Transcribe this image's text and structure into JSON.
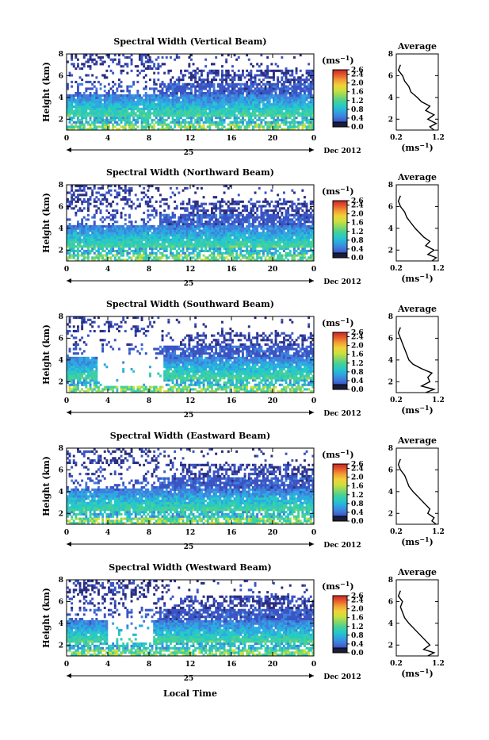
{
  "figure": {
    "x_axis_label": "Local Time",
    "date_label": "Dec 2012",
    "day_label": "25",
    "colorbar_unit": "(ms",
    "colorbar_unit_exp": "−1",
    "avg_title": "Average",
    "avg_xlabel": "(ms",
    "avg_xlabel_exp": "−1"
  },
  "colors": {
    "scale": [
      "#2b2e7e",
      "#3b54c4",
      "#3f7fdc",
      "#2ca8e2",
      "#27c9c6",
      "#45d098",
      "#8fd860",
      "#cfe03c",
      "#f1d13a",
      "#f29e33",
      "#e7592d",
      "#c92424"
    ]
  },
  "chart_data": [
    {
      "type": "heatmap",
      "title": "Spectral Width (Vertical Beam)",
      "ylabel": "Height (km)",
      "xlim": [
        0,
        24
      ],
      "ylim": [
        1,
        8
      ],
      "xticks": [
        "0",
        "4",
        "8",
        "12",
        "16",
        "20",
        "0"
      ],
      "yticks": [
        "2",
        "4",
        "6",
        "8"
      ],
      "colorbar": {
        "range": [
          0.0,
          2.6
        ],
        "ticks": [
          "0.0",
          "0.4",
          "0.8",
          "1.2",
          "1.6",
          "2.0",
          "2.4",
          "2.6"
        ]
      },
      "average_profile": {
        "xlim": [
          0.2,
          1.2
        ],
        "xticks": [
          "0.2",
          "1.2"
        ],
        "yticks": [
          "2",
          "4",
          "6",
          "8"
        ],
        "heights": [
          1.0,
          1.3,
          1.6,
          2.0,
          2.4,
          2.8,
          3.2,
          3.6,
          4.0,
          4.5,
          5.0,
          5.5,
          6.0,
          6.5,
          7.0
        ],
        "values": [
          1.1,
          1.0,
          1.15,
          0.95,
          1.1,
          0.9,
          1.0,
          0.8,
          0.7,
          0.55,
          0.5,
          0.4,
          0.35,
          0.25,
          0.3
        ]
      }
    },
    {
      "type": "heatmap",
      "title": "Spectral Width (Northward Beam)",
      "ylabel": "Height (km)",
      "xlim": [
        0,
        24
      ],
      "ylim": [
        1,
        8
      ],
      "xticks": [
        "0",
        "4",
        "8",
        "12",
        "16",
        "20",
        "0"
      ],
      "yticks": [
        "2",
        "4",
        "6",
        "8"
      ],
      "colorbar": {
        "range": [
          0.0,
          2.6
        ],
        "ticks": [
          "0.0",
          "0.4",
          "0.8",
          "1.2",
          "1.6",
          "2.0",
          "2.4",
          "2.6"
        ]
      },
      "average_profile": {
        "xlim": [
          0.2,
          1.2
        ],
        "xticks": [
          "0.2",
          "1.2"
        ],
        "yticks": [
          "2",
          "4",
          "6",
          "8"
        ],
        "heights": [
          1.0,
          1.3,
          1.6,
          2.0,
          2.4,
          2.8,
          3.2,
          3.6,
          4.0,
          4.5,
          5.0,
          5.5,
          6.0,
          6.5,
          7.0
        ],
        "values": [
          1.05,
          1.15,
          0.95,
          1.1,
          0.9,
          1.0,
          0.85,
          0.75,
          0.65,
          0.55,
          0.45,
          0.4,
          0.3,
          0.25,
          0.3
        ]
      }
    },
    {
      "type": "heatmap",
      "title": "Spectral Width (Southward Beam)",
      "ylabel": "Height (km)",
      "xlim": [
        0,
        24
      ],
      "ylim": [
        1,
        8
      ],
      "xticks": [
        "0",
        "4",
        "8",
        "12",
        "16",
        "20",
        "0"
      ],
      "yticks": [
        "2",
        "4",
        "6",
        "8"
      ],
      "colorbar": {
        "range": [
          0.0,
          2.6
        ],
        "ticks": [
          "0.0",
          "0.4",
          "0.8",
          "1.2",
          "1.6",
          "2.0",
          "2.4",
          "2.6"
        ]
      },
      "average_profile": {
        "xlim": [
          0.2,
          1.2
        ],
        "xticks": [
          "0.2",
          "1.2"
        ],
        "yticks": [
          "2",
          "4",
          "6",
          "8"
        ],
        "heights": [
          1.0,
          1.3,
          1.6,
          2.0,
          2.4,
          2.8,
          3.2,
          3.6,
          4.0,
          4.5,
          5.0,
          5.5,
          6.0,
          6.5,
          7.0
        ],
        "values": [
          0.9,
          1.1,
          0.8,
          1.0,
          0.95,
          1.05,
          0.8,
          0.6,
          0.5,
          0.45,
          0.4,
          0.35,
          0.3,
          0.25,
          0.3
        ]
      }
    },
    {
      "type": "heatmap",
      "title": "Spectral Width (Eastward Beam)",
      "ylabel": "Height (km)",
      "xlim": [
        0,
        24
      ],
      "ylim": [
        1,
        8
      ],
      "xticks": [
        "0",
        "4",
        "8",
        "12",
        "16",
        "20",
        "0"
      ],
      "yticks": [
        "2",
        "4",
        "6",
        "8"
      ],
      "colorbar": {
        "range": [
          0.0,
          2.6
        ],
        "ticks": [
          "0.0",
          "0.4",
          "0.8",
          "1.2",
          "1.6",
          "2.0",
          "2.4",
          "2.6"
        ]
      },
      "average_profile": {
        "xlim": [
          0.2,
          1.2
        ],
        "xticks": [
          "0.2",
          "1.2"
        ],
        "yticks": [
          "2",
          "4",
          "6",
          "8"
        ],
        "heights": [
          1.0,
          1.3,
          1.6,
          2.0,
          2.4,
          2.8,
          3.2,
          3.6,
          4.0,
          4.5,
          5.0,
          5.5,
          6.0,
          6.5,
          7.0
        ],
        "values": [
          1.15,
          1.05,
          1.1,
          0.95,
          1.0,
          0.9,
          0.8,
          0.7,
          0.6,
          0.5,
          0.45,
          0.4,
          0.3,
          0.25,
          0.3
        ]
      }
    },
    {
      "type": "heatmap",
      "title": "Spectral Width (Westward Beam)",
      "ylabel": "Height (km)",
      "xlim": [
        0,
        24
      ],
      "ylim": [
        1,
        8
      ],
      "xticks": [
        "0",
        "4",
        "8",
        "12",
        "16",
        "20",
        "0"
      ],
      "yticks": [
        "2",
        "4",
        "6",
        "8"
      ],
      "colorbar": {
        "range": [
          0.0,
          2.6
        ],
        "ticks": [
          "0.0",
          "0.4",
          "0.8",
          "1.2",
          "1.6",
          "2.0",
          "2.4",
          "2.6"
        ]
      },
      "average_profile": {
        "xlim": [
          0.2,
          1.2
        ],
        "xticks": [
          "0.2",
          "1.2"
        ],
        "yticks": [
          "2",
          "4",
          "6",
          "8"
        ],
        "heights": [
          1.0,
          1.3,
          1.6,
          2.0,
          2.4,
          2.8,
          3.2,
          3.6,
          4.0,
          4.5,
          5.0,
          5.5,
          6.0,
          6.5,
          7.0
        ],
        "values": [
          0.95,
          1.1,
          0.85,
          1.0,
          0.9,
          0.8,
          0.7,
          0.6,
          0.5,
          0.4,
          0.35,
          0.3,
          0.35,
          0.25,
          0.3
        ]
      }
    }
  ]
}
